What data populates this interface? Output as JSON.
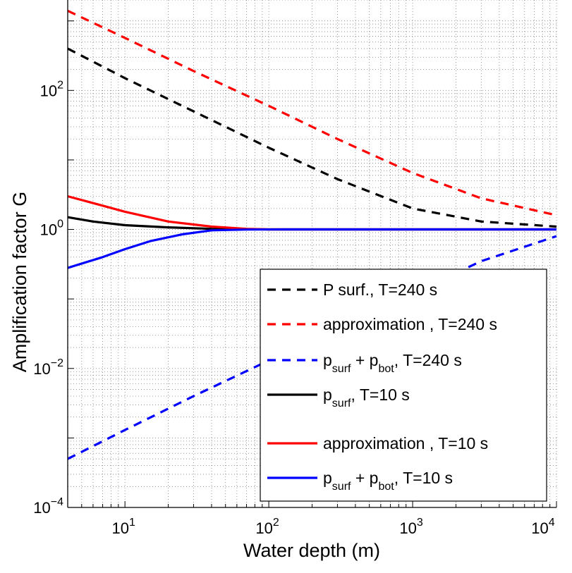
{
  "chart_data": {
    "type": "line",
    "title": "",
    "xlabel": "Water depth (m)",
    "ylabel": "Amplification factor G",
    "x_scale": "log",
    "y_scale": "log",
    "xlim": [
      4,
      10000
    ],
    "ylim": [
      0.0001,
      2000
    ],
    "grid": true,
    "legend_position": "bottom-right",
    "x_ticks": [
      {
        "value": 10,
        "base": "10",
        "exp": "1"
      },
      {
        "value": 100,
        "base": "10",
        "exp": "2"
      },
      {
        "value": 1000,
        "base": "10",
        "exp": "3"
      },
      {
        "value": 10000,
        "base": "10",
        "exp": "4"
      }
    ],
    "y_ticks": [
      {
        "value": 0.0001,
        "base": "10",
        "exp": "−4"
      },
      {
        "value": 0.01,
        "base": "10",
        "exp": "−2"
      },
      {
        "value": 1,
        "base": "10",
        "exp": "0"
      },
      {
        "value": 100,
        "base": "10",
        "exp": "2"
      }
    ],
    "series": [
      {
        "label_parts": [
          {
            "t": "P surf., T=240 s"
          }
        ],
        "color": "#000000",
        "dash": true,
        "x": [
          4,
          10,
          30,
          100,
          300,
          1000,
          3000,
          10000
        ],
        "y": [
          400,
          150,
          50,
          15,
          5.3,
          2.0,
          1.3,
          1.1
        ]
      },
      {
        "label_parts": [
          {
            "t": "approximation , T=240 s"
          }
        ],
        "color": "#ff0000",
        "dash": true,
        "x": [
          4,
          10,
          30,
          100,
          300,
          1000,
          3000,
          10000
        ],
        "y": [
          1400,
          570,
          190,
          60,
          20,
          6.5,
          2.8,
          1.6
        ]
      },
      {
        "label_parts": [
          {
            "t": "p"
          },
          {
            "t": "surf",
            "sub": true
          },
          {
            "t": " + p"
          },
          {
            "t": "bot",
            "sub": true
          },
          {
            "t": ", T=240 s"
          }
        ],
        "color": "#0000ff",
        "dash": true,
        "x": [
          4,
          10,
          30,
          100,
          300,
          1000,
          3000,
          10000
        ],
        "y": [
          0.0005,
          0.0013,
          0.004,
          0.013,
          0.04,
          0.12,
          0.35,
          0.8
        ]
      },
      {
        "label_parts": [
          {
            "t": "p"
          },
          {
            "t": "surf",
            "sub": true
          },
          {
            "t": ", T=10 s"
          }
        ],
        "color": "#000000",
        "dash": false,
        "x": [
          4,
          6,
          10,
          20,
          40,
          100,
          1000,
          10000
        ],
        "y": [
          1.5,
          1.3,
          1.15,
          1.07,
          1.02,
          1.0,
          1.0,
          1.0
        ]
      },
      {
        "label_parts": [
          {
            "t": "approximation , T=10 s"
          }
        ],
        "color": "#ff0000",
        "dash": false,
        "x": [
          4,
          7,
          10,
          20,
          40,
          70,
          100,
          1000,
          10000
        ],
        "y": [
          3.0,
          2.2,
          1.8,
          1.3,
          1.1,
          1.02,
          1.0,
          1.0,
          1.0
        ]
      },
      {
        "label_parts": [
          {
            "t": "p"
          },
          {
            "t": "surf",
            "sub": true
          },
          {
            "t": " + p"
          },
          {
            "t": "bot",
            "sub": true
          },
          {
            "t": ", T=10 s"
          }
        ],
        "color": "#0000ff",
        "dash": false,
        "x": [
          4,
          7,
          10,
          15,
          25,
          40,
          70,
          130,
          1000,
          10000
        ],
        "y": [
          0.28,
          0.4,
          0.52,
          0.68,
          0.85,
          0.97,
          0.995,
          1.0,
          1.0,
          1.0
        ]
      }
    ]
  }
}
